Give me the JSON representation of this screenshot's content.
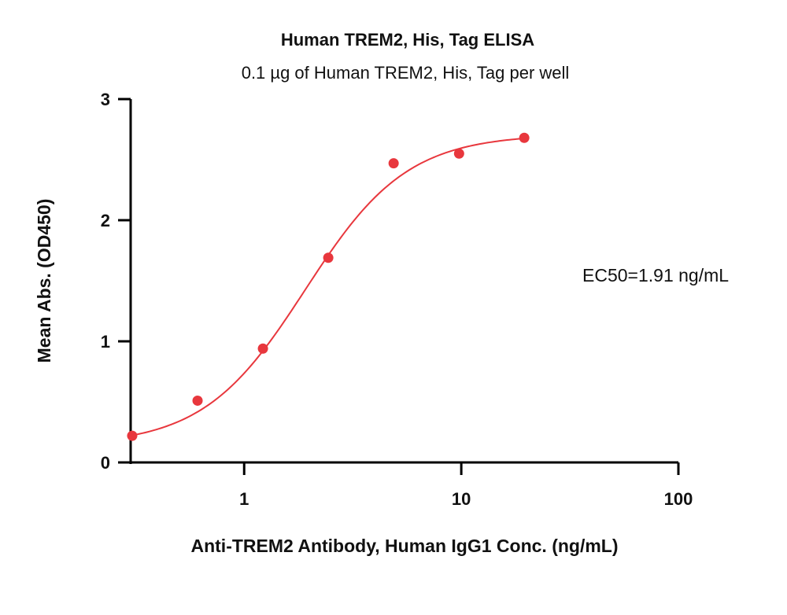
{
  "chart_data": {
    "type": "scatter",
    "title": "Human TREM2, His, Tag ELISA",
    "subtitle": "0.1 µg of Human TREM2, His, Tag per well",
    "xlabel": "Anti-TREM2 Antibody, Human IgG1 Conc. (ng/mL)",
    "ylabel": "Mean Abs. (OD450)",
    "x_scale": "log",
    "xlim": [
      0.3,
      100
    ],
    "ylim": [
      0,
      3
    ],
    "x_ticks": [
      {
        "value": 1,
        "label": "1"
      },
      {
        "value": 10,
        "label": "10"
      },
      {
        "value": 100,
        "label": "100"
      }
    ],
    "y_ticks": [
      {
        "value": 0,
        "label": "0"
      },
      {
        "value": 1,
        "label": "1"
      },
      {
        "value": 2,
        "label": "2"
      },
      {
        "value": 3,
        "label": "3"
      }
    ],
    "series": [
      {
        "color": "#e8373d",
        "x": [
          0.305,
          0.61,
          1.22,
          2.44,
          4.88,
          9.77,
          19.5
        ],
        "y": [
          0.22,
          0.51,
          0.94,
          1.69,
          2.47,
          2.55,
          2.68
        ],
        "fit": {
          "model": "4PL",
          "bottom": 0.14,
          "top": 2.71,
          "ec50": 1.91,
          "hill": 1.85,
          "x_range": [
            0.305,
            19.5
          ]
        }
      }
    ],
    "annotations": [
      {
        "text": "EC50=1.91 ng/mL"
      }
    ],
    "grid": false,
    "legend": "none"
  }
}
